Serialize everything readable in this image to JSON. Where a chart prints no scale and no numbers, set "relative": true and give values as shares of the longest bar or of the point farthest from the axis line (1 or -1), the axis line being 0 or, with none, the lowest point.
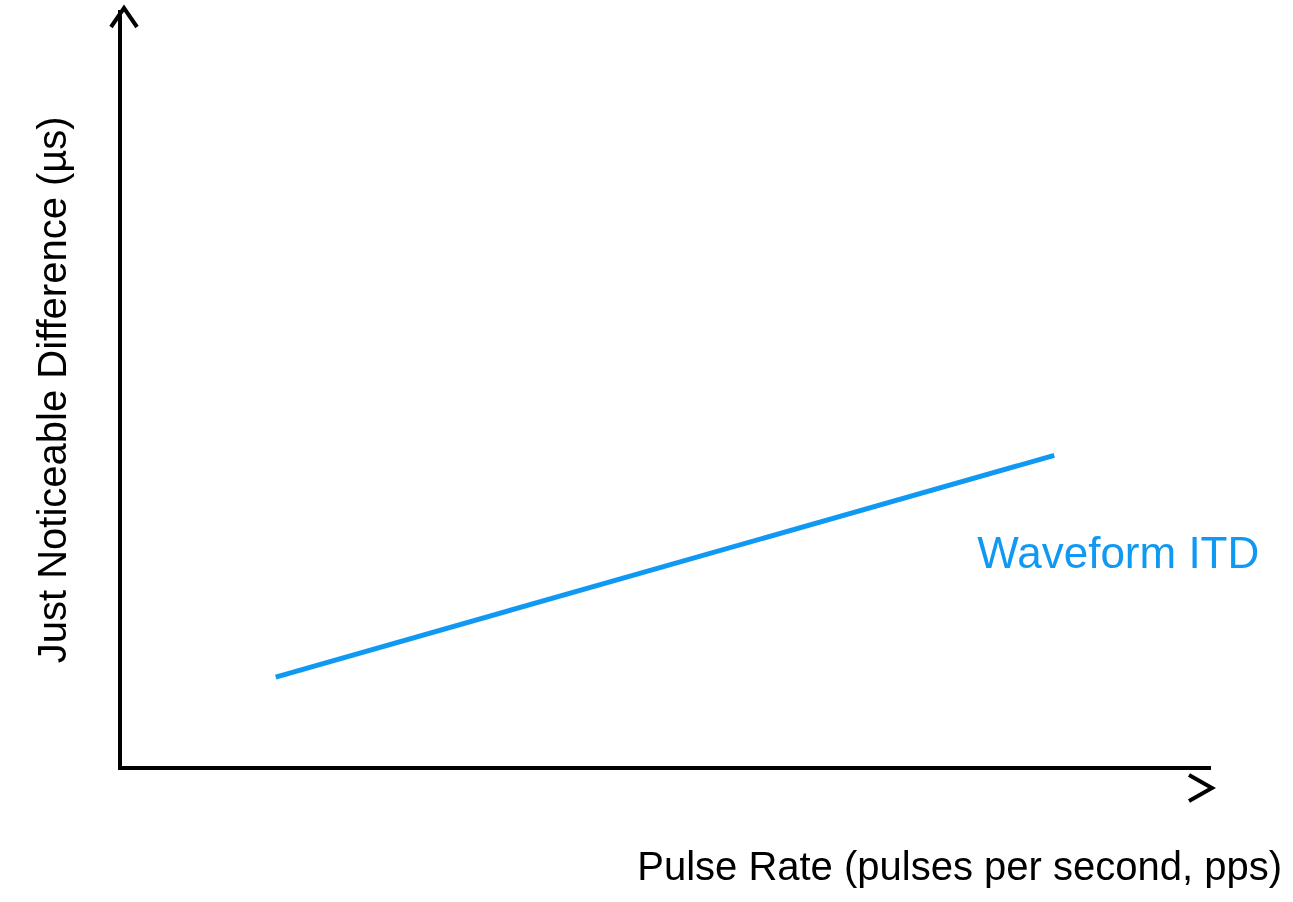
{
  "chart_data": {
    "type": "line",
    "relative": true,
    "xlabel": "Pulse Rate (pulses per second, pps)",
    "ylabel": "Just Noticeable Difference (µs)",
    "categories": [
      null,
      null,
      null,
      null,
      null,
      null,
      null,
      null,
      null,
      null,
      null,
      null,
      null,
      null,
      null
    ],
    "series": [
      {
        "name": "Waveform ITD",
        "color": "#0f99f2",
        "values": [
          null,
          null,
          0.29,
          null,
          null,
          null,
          null,
          null,
          null,
          null,
          null,
          null,
          1,
          null,
          null
        ]
      }
    ],
    "legend": false,
    "grid": false,
    "marker": "none",
    "line_style": "solid"
  }
}
